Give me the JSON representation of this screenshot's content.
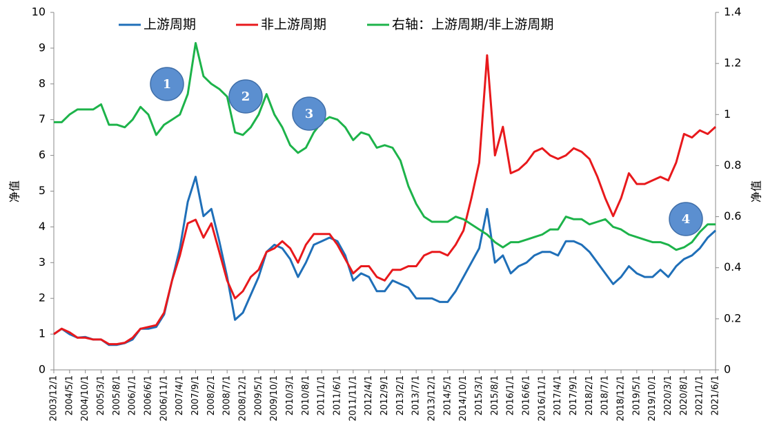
{
  "chart_data": {
    "type": "line",
    "categories": [
      "2003/12/1",
      null,
      "2004/5/1",
      null,
      "2004/10/1",
      null,
      "2005/3/1",
      null,
      "2005/8/1",
      null,
      "2006/1/1",
      null,
      "2006/6/1",
      null,
      "2006/11/1",
      null,
      "2007/4/1",
      null,
      "2007/9/1",
      null,
      "2008/2/1",
      null,
      "2008/7/1",
      null,
      "2008/12/1",
      null,
      "2009/5/1",
      null,
      "2009/10/1",
      null,
      "2010/3/1",
      null,
      "2010/8/1",
      null,
      "2011/1/1",
      null,
      "2011/6/1",
      null,
      "2011/11/1",
      null,
      "2012/4/1",
      null,
      "2012/9/1",
      null,
      "2013/2/1",
      null,
      "2013/7/1",
      null,
      "2013/12/1",
      null,
      "2014/5/1",
      null,
      "2014/10/1",
      null,
      "2015/3/1",
      null,
      "2015/8/1",
      null,
      "2016/1/1",
      null,
      "2016/6/1",
      null,
      "2016/11/1",
      null,
      "2017/4/1",
      null,
      "2017/9/1",
      null,
      "2018/2/1",
      null,
      "2018/7/1",
      null,
      "2018/12/1",
      null,
      "2019/5/1",
      null,
      "2019/10/1",
      null,
      "2020/3/1",
      null,
      "2020/8/1",
      null,
      "2021/1/1",
      null,
      "2021/6/1"
    ],
    "series": [
      {
        "name": "上游周期",
        "color": "#1f6fb8",
        "values": [
          1.0,
          1.15,
          1.0,
          0.9,
          0.92,
          0.85,
          0.85,
          0.7,
          0.7,
          0.75,
          0.85,
          1.15,
          1.15,
          1.2,
          1.55,
          2.5,
          3.4,
          4.7,
          5.4,
          4.3,
          4.5,
          3.6,
          2.6,
          1.4,
          1.6,
          2.1,
          2.6,
          3.3,
          3.5,
          3.4,
          3.1,
          2.6,
          3.0,
          3.5,
          3.6,
          3.7,
          3.6,
          3.2,
          2.5,
          2.7,
          2.6,
          2.2,
          2.2,
          2.5,
          2.4,
          2.3,
          2.0,
          2.0,
          2.0,
          1.9,
          1.9,
          2.2,
          2.6,
          3.0,
          3.4,
          4.5,
          3.0,
          3.2,
          2.7,
          2.9,
          3.0,
          3.2,
          3.3,
          3.3,
          3.2,
          3.6,
          3.6,
          3.5,
          3.3,
          3.0,
          2.7,
          2.4,
          2.6,
          2.9,
          2.7,
          2.6,
          2.6,
          2.8,
          2.6,
          2.9,
          3.1,
          3.2,
          3.4,
          3.7,
          3.9
        ]
      },
      {
        "name": "非上游周期",
        "color": "#e8191c",
        "values": [
          1.0,
          1.15,
          1.05,
          0.9,
          0.9,
          0.85,
          0.85,
          0.72,
          0.72,
          0.76,
          0.9,
          1.15,
          1.2,
          1.25,
          1.6,
          2.5,
          3.2,
          4.1,
          4.2,
          3.7,
          4.1,
          3.3,
          2.5,
          2.0,
          2.2,
          2.6,
          2.8,
          3.3,
          3.4,
          3.6,
          3.4,
          3.0,
          3.5,
          3.8,
          3.8,
          3.8,
          3.5,
          3.1,
          2.7,
          2.9,
          2.9,
          2.6,
          2.5,
          2.8,
          2.8,
          2.9,
          2.9,
          3.2,
          3.3,
          3.3,
          3.2,
          3.5,
          3.9,
          4.8,
          5.8,
          8.8,
          6.0,
          6.8,
          5.5,
          5.6,
          5.8,
          6.1,
          6.2,
          6.0,
          5.9,
          6.0,
          6.2,
          6.1,
          5.9,
          5.4,
          4.8,
          4.3,
          4.8,
          5.5,
          5.2,
          5.2,
          5.3,
          5.4,
          5.3,
          5.8,
          6.6,
          6.5,
          6.7,
          6.6,
          6.8
        ]
      },
      {
        "name": "右轴：上游周期/非上游周期",
        "color": "#1db34a",
        "axis": "y2",
        "values": [
          0.97,
          0.97,
          1.0,
          1.02,
          1.02,
          1.02,
          1.04,
          0.96,
          0.96,
          0.95,
          0.98,
          1.03,
          1.0,
          0.92,
          0.96,
          0.98,
          1.0,
          1.08,
          1.28,
          1.15,
          1.12,
          1.1,
          1.07,
          0.93,
          0.92,
          0.95,
          1.0,
          1.08,
          1.0,
          0.95,
          0.88,
          0.85,
          0.87,
          0.93,
          0.97,
          0.99,
          0.98,
          0.95,
          0.9,
          0.93,
          0.92,
          0.87,
          0.88,
          0.87,
          0.82,
          0.72,
          0.65,
          0.6,
          0.58,
          0.58,
          0.58,
          0.6,
          0.59,
          0.57,
          0.55,
          0.53,
          0.5,
          0.48,
          0.5,
          0.5,
          0.51,
          0.52,
          0.53,
          0.55,
          0.55,
          0.6,
          0.59,
          0.59,
          0.57,
          0.58,
          0.59,
          0.56,
          0.55,
          0.53,
          0.52,
          0.51,
          0.5,
          0.5,
          0.49,
          0.47,
          0.48,
          0.5,
          0.54,
          0.57,
          0.57
        ]
      }
    ],
    "ylabel": "净值",
    "y2label": "净值",
    "ylim": [
      0,
      10
    ],
    "yticks": [
      0,
      1,
      2,
      3,
      4,
      5,
      6,
      7,
      8,
      9,
      10
    ],
    "y2lim": [
      0,
      1.4
    ],
    "y2ticks": [
      0,
      0.2,
      0.4,
      0.6,
      0.8,
      1,
      1.2,
      1.4
    ],
    "annotations": [
      "1",
      "2",
      "3",
      "4"
    ]
  }
}
